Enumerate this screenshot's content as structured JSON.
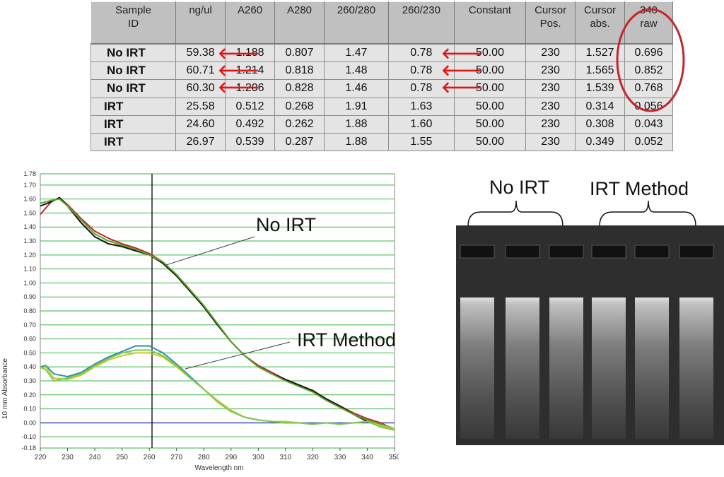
{
  "table": {
    "headers": [
      "Sample\nID",
      "ng/ul",
      "A260",
      "A280",
      "260/280",
      "260/230",
      "Constant",
      "Cursor\nPos.",
      "Cursor\nabs.",
      "340\nraw"
    ],
    "rows": [
      [
        "No IRT",
        "59.38",
        "1.188",
        "0.807",
        "1.47",
        "0.78",
        "50.00",
        "230",
        "1.527",
        "0.696"
      ],
      [
        "No IRT",
        "60.71",
        "1.214",
        "0.818",
        "1.48",
        "0.78",
        "50.00",
        "230",
        "1.565",
        "0.852"
      ],
      [
        "No IRT",
        "60.30",
        "1.206",
        "0.828",
        "1.46",
        "0.78",
        "50.00",
        "230",
        "1.539",
        "0.768"
      ],
      [
        "IRT",
        "25.58",
        "0.512",
        "0.268",
        "1.91",
        "1.63",
        "50.00",
        "230",
        "0.314",
        "0.056"
      ],
      [
        "IRT",
        "24.60",
        "0.492",
        "0.262",
        "1.88",
        "1.60",
        "50.00",
        "230",
        "0.308",
        "0.043"
      ],
      [
        "IRT",
        "26.97",
        "0.539",
        "0.287",
        "1.88",
        "1.55",
        "50.00",
        "230",
        "0.349",
        "0.052"
      ]
    ],
    "arrow_glyph": "🡐",
    "highlight_color": "#c0282d",
    "arrow_color": "#e01616"
  },
  "gel": {
    "label_no_irt": "No IRT",
    "label_irt": "IRT Method"
  },
  "chart_data": {
    "type": "line",
    "xlabel": "Wavelength nm",
    "ylabel": "10 mm Absorbance",
    "xlim": [
      220,
      350
    ],
    "ylim": [
      -0.18,
      1.78
    ],
    "x_ticks": [
      220,
      230,
      240,
      250,
      260,
      270,
      280,
      290,
      300,
      310,
      320,
      330,
      340,
      350
    ],
    "y_ticks": [
      -0.18,
      -0.1,
      0.0,
      0.1,
      0.2,
      0.3,
      0.4,
      0.5,
      0.6,
      0.7,
      0.8,
      0.9,
      1.0,
      1.1,
      1.2,
      1.3,
      1.4,
      1.5,
      1.6,
      1.7,
      1.78
    ],
    "cursor_x": 261,
    "grid": true,
    "annotations": [
      "No IRT",
      "IRT Method"
    ],
    "series": [
      {
        "color": "#c0282d",
        "x": [
          220,
          224,
          227,
          230,
          235,
          240,
          245,
          250,
          255,
          260,
          265,
          270,
          275,
          280,
          285,
          290,
          295,
          300,
          305,
          310,
          315,
          320,
          325,
          330,
          335,
          340,
          345,
          350
        ],
        "y": [
          1.49,
          1.58,
          1.61,
          1.56,
          1.46,
          1.37,
          1.32,
          1.28,
          1.25,
          1.21,
          1.15,
          1.06,
          0.95,
          0.83,
          0.71,
          0.58,
          0.48,
          0.41,
          0.36,
          0.31,
          0.27,
          0.23,
          0.17,
          0.12,
          0.07,
          0.03,
          0.0,
          -0.05
        ]
      },
      {
        "color": "#111111",
        "x": [
          220,
          224,
          227,
          230,
          235,
          240,
          245,
          250,
          255,
          260,
          265,
          270,
          275,
          280,
          285,
          290,
          295,
          300,
          305,
          310,
          315,
          320,
          325,
          330,
          335,
          340,
          345,
          350
        ],
        "y": [
          1.55,
          1.58,
          1.61,
          1.55,
          1.43,
          1.33,
          1.28,
          1.26,
          1.23,
          1.2,
          1.14,
          1.05,
          0.94,
          0.83,
          0.7,
          0.58,
          0.48,
          0.4,
          0.35,
          0.31,
          0.27,
          0.23,
          0.17,
          0.12,
          0.06,
          0.01,
          -0.03,
          -0.05
        ]
      },
      {
        "color": "#5aa52c",
        "x": [
          220,
          224,
          227,
          230,
          235,
          240,
          245,
          250,
          255,
          260,
          265,
          270,
          275,
          280,
          285,
          290,
          295,
          300,
          305,
          310,
          315,
          320,
          325,
          330,
          335,
          340,
          345,
          350
        ],
        "y": [
          1.57,
          1.59,
          1.6,
          1.55,
          1.45,
          1.35,
          1.3,
          1.27,
          1.24,
          1.2,
          1.15,
          1.06,
          0.95,
          0.84,
          0.71,
          0.58,
          0.48,
          0.4,
          0.35,
          0.3,
          0.26,
          0.22,
          0.16,
          0.11,
          0.06,
          0.02,
          -0.01,
          -0.04
        ]
      },
      {
        "color": "#2a8fb0",
        "x": [
          220,
          222,
          225,
          230,
          235,
          240,
          245,
          250,
          255,
          260,
          265,
          270,
          275,
          280,
          285,
          290,
          295,
          300,
          305,
          310,
          315,
          320,
          325,
          330,
          335,
          340,
          345,
          350
        ],
        "y": [
          0.4,
          0.41,
          0.35,
          0.33,
          0.36,
          0.42,
          0.47,
          0.51,
          0.55,
          0.55,
          0.5,
          0.42,
          0.33,
          0.24,
          0.16,
          0.09,
          0.04,
          0.02,
          0.01,
          0.0,
          0.0,
          -0.01,
          0.0,
          -0.01,
          0.0,
          0.01,
          -0.02,
          -0.05
        ]
      },
      {
        "color": "#c8c82a",
        "x": [
          220,
          222,
          225,
          230,
          235,
          240,
          245,
          250,
          255,
          260,
          265,
          270,
          275,
          280,
          285,
          290,
          295,
          300,
          305,
          310,
          315,
          320,
          325,
          330,
          335,
          340,
          345,
          350
        ],
        "y": [
          0.39,
          0.4,
          0.32,
          0.31,
          0.34,
          0.4,
          0.45,
          0.48,
          0.5,
          0.5,
          0.47,
          0.4,
          0.32,
          0.24,
          0.16,
          0.09,
          0.04,
          0.02,
          0.01,
          0.01,
          0.0,
          -0.01,
          0.0,
          -0.01,
          0.0,
          0.01,
          -0.02,
          -0.04
        ]
      },
      {
        "color": "#7ec850",
        "x": [
          220,
          222,
          225,
          230,
          235,
          240,
          245,
          250,
          255,
          260,
          265,
          270,
          275,
          280,
          285,
          290,
          295,
          300,
          305,
          310,
          315,
          320,
          325,
          330,
          335,
          340,
          345,
          350
        ],
        "y": [
          0.4,
          0.38,
          0.3,
          0.32,
          0.35,
          0.41,
          0.46,
          0.5,
          0.52,
          0.52,
          0.48,
          0.41,
          0.32,
          0.24,
          0.15,
          0.08,
          0.04,
          0.02,
          0.01,
          0.0,
          0.0,
          -0.01,
          0.0,
          -0.01,
          0.0,
          0.01,
          -0.03,
          -0.05
        ]
      }
    ]
  }
}
